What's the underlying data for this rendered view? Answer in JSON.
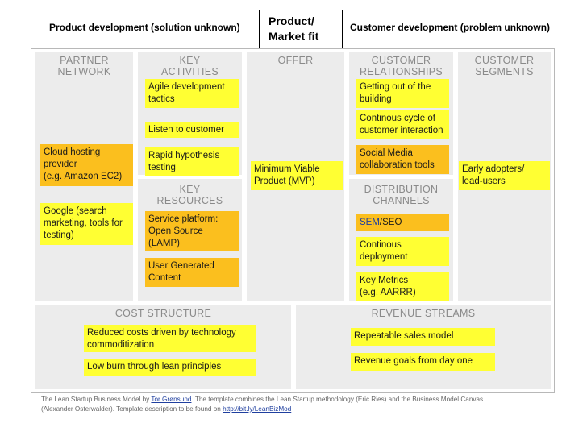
{
  "header": {
    "left": "Product development (solution unknown)",
    "center_line1": "Product/",
    "center_line2": "Market fit",
    "right": "Customer development (problem unknown)"
  },
  "sections": {
    "partner_network": [
      "PARTNER",
      "NETWORK"
    ],
    "key_activities": [
      "KEY",
      "ACTIVITIES"
    ],
    "key_resources": [
      "KEY",
      "RESOURCES"
    ],
    "offer": [
      "OFFER"
    ],
    "customer_relationships": [
      "CUSTOMER",
      "RELATIONSHIPS"
    ],
    "distribution_channels": [
      "DISTRIBUTION",
      "CHANNELS"
    ],
    "customer_segments": [
      "CUSTOMER",
      "SEGMENTS"
    ],
    "cost_structure": [
      "COST STRUCTURE"
    ],
    "revenue_streams": [
      "REVENUE STREAMS"
    ]
  },
  "notes": {
    "cloud_hosting": [
      "Cloud hosting",
      "provider",
      "(e.g. Amazon EC2)"
    ],
    "google": [
      "Google (search",
      "marketing, tools for",
      "testing)"
    ],
    "agile": [
      "Agile development",
      "tactics"
    ],
    "listen": [
      "Listen to customer"
    ],
    "rapid": [
      "Rapid hypothesis",
      "testing"
    ],
    "service_platform": [
      "Service platform:",
      "Open Source",
      "(LAMP)"
    ],
    "ugc": [
      "User Generated",
      "Content"
    ],
    "mvp": [
      "Minimum Viable",
      "Product (MVP)"
    ],
    "getting_out": [
      "Getting out of the",
      "building"
    ],
    "continous_cycle": [
      "Continous cycle of",
      "customer interaction"
    ],
    "social_media": [
      "Social Media",
      "collaboration tools"
    ],
    "sem_seo": [
      "SEM",
      "/SEO"
    ],
    "continous_deploy": [
      "Continous",
      "deployment"
    ],
    "key_metrics": [
      "Key Metrics",
      "(e.g. AARRR)"
    ],
    "early_adopters": [
      "Early adopters/",
      "lead-users"
    ],
    "reduced_costs": [
      "Reduced costs driven by technology",
      "commoditization"
    ],
    "low_burn": [
      "Low burn through lean principles"
    ],
    "repeatable": [
      "Repeatable sales model"
    ],
    "revenue_goals": [
      "Revenue goals from day one"
    ]
  },
  "footer": {
    "t1": "The Lean Startup Business Model by ",
    "author": "Tor Grønsund",
    "t2": ". The template combines the Lean Startup methodology (Eric Ries) and the Business Model Canvas",
    "t3": "(Alexander Osterwalder). Template description to be found on ",
    "link": "http://bit.ly/LeanBizMod"
  },
  "colors": {
    "yellow": "#ffff33",
    "orange": "#fbbf1e",
    "cell": "#ececec",
    "link": "#1f3f9f"
  }
}
